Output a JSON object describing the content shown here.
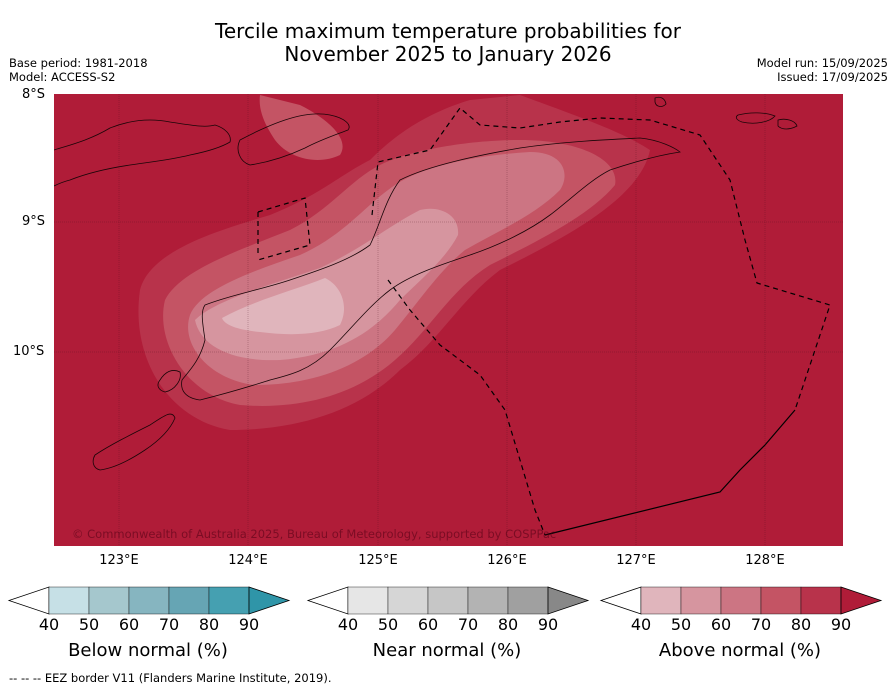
{
  "header": {
    "title_line1": "Tercile maximum temperature probabilities for",
    "title_line2": "November 2025 to January 2026",
    "base_period": "Base period: 1981-2018",
    "model": "Model: ACCESS-S2",
    "model_run": "Model run: 15/09/2025",
    "issued": "Issued: 17/09/2025"
  },
  "map": {
    "lat_labels": [
      "8°S",
      "9°S",
      "10°S"
    ],
    "lon_labels": [
      "123°E",
      "124°E",
      "125°E",
      "126°E",
      "127°E",
      "128°E"
    ],
    "copyright": "© Commonwealth of Australia 2025, Bureau of Meteorology, supported by COSPPac",
    "dominant_category": "Above normal",
    "background_color": "#b01c38"
  },
  "colorbars": [
    {
      "label": "Below normal (%)",
      "ticks": [
        "40",
        "50",
        "60",
        "70",
        "80",
        "90"
      ],
      "colors": [
        "#c6e0e6",
        "#a5c7cd",
        "#86b5c0",
        "#66a5b4",
        "#45a0b1"
      ],
      "max_color": "#2f95a8"
    },
    {
      "label": "Near normal (%)",
      "ticks": [
        "40",
        "50",
        "60",
        "70",
        "80",
        "90"
      ],
      "colors": [
        "#e6e6e6",
        "#d6d6d6",
        "#c6c6c6",
        "#b3b3b3",
        "#a0a0a0"
      ],
      "max_color": "#888888"
    },
    {
      "label": "Above normal (%)",
      "ticks": [
        "40",
        "50",
        "60",
        "70",
        "80",
        "90"
      ],
      "colors": [
        "#e0b5bc",
        "#d6959f",
        "#cc7583",
        "#c45464",
        "#b8334b"
      ],
      "max_color": "#b01c38"
    }
  ],
  "footnote": "--  --  -- EEZ border V11 (Flanders Marine Institute, 2019)."
}
